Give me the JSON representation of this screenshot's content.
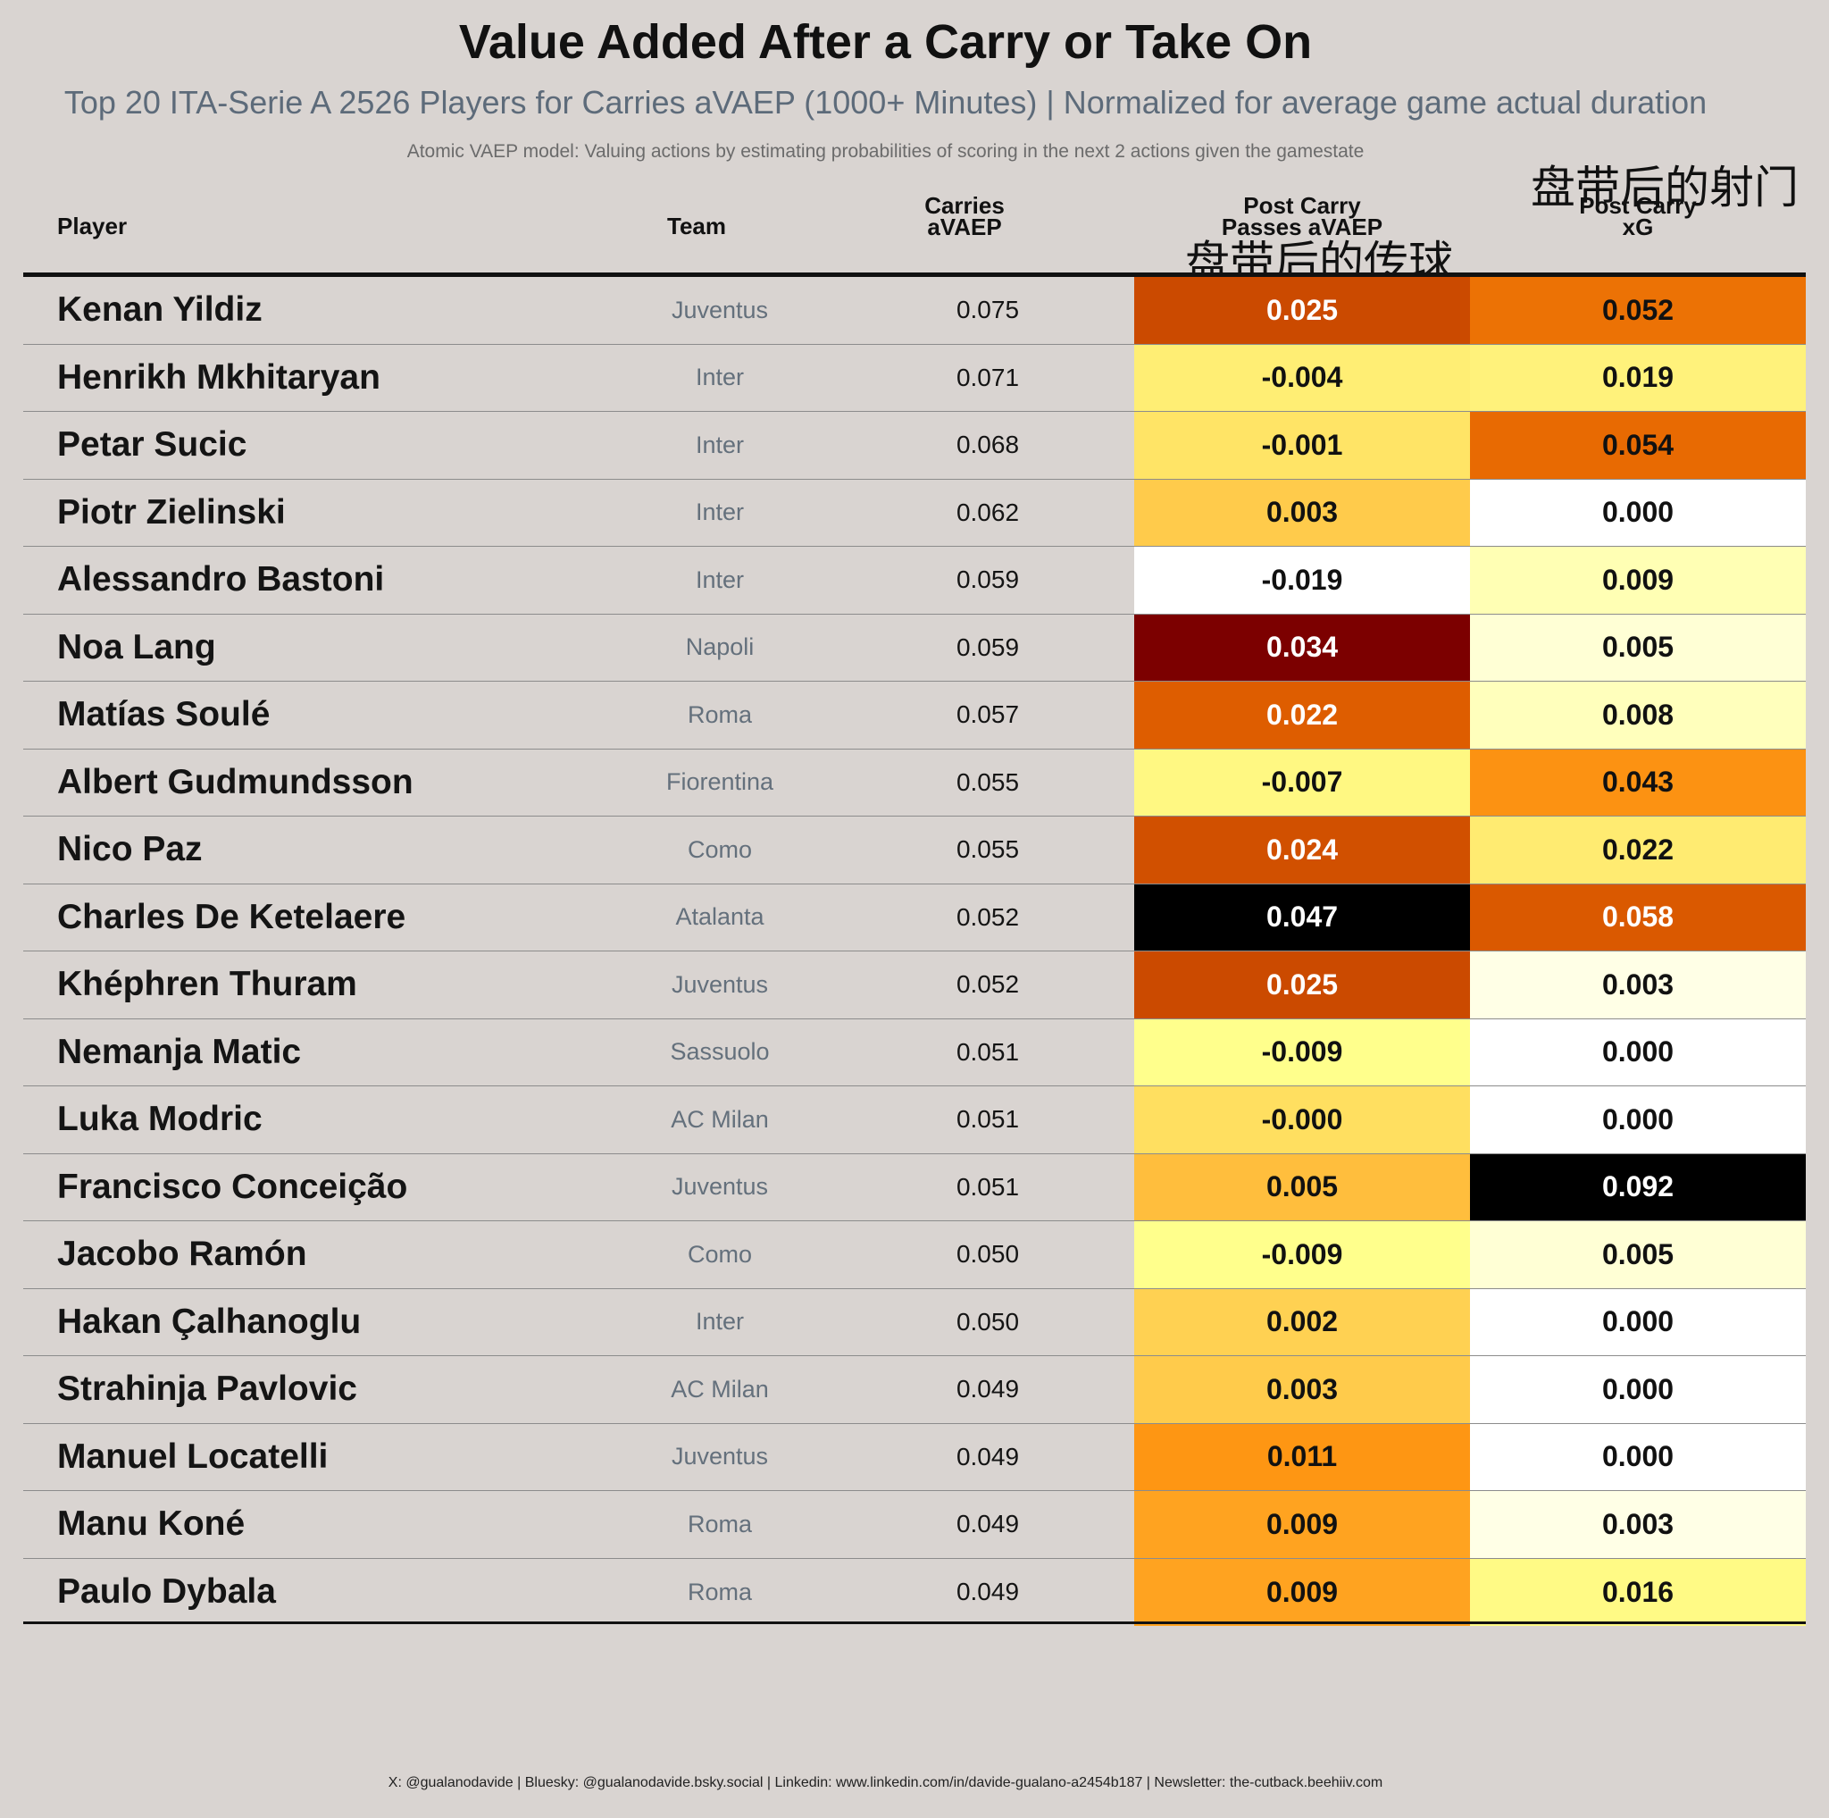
{
  "title": "Value Added After a Carry or Take On",
  "subtitle": "Top 20 ITA-Serie A 2526 Players for Carries aVAEP (1000+ Minutes) | Normalized for average game actual duration",
  "caption": "Atomic VAEP model: Valuing actions by estimating probabilities of scoring in the next 2 actions given the gamestate",
  "footer": "X: @gualanodavide | Bluesky: @gualanodavide.bsky.social | Linkedin: www.linkedin.com/in/davide-gualano-a2454b187 | Newsletter: the-cutback.beehiiv.com",
  "annotations": {
    "passes": "盘带后的传球",
    "xg": "盘带后的射门"
  },
  "headers": {
    "player": "Player",
    "team": "Team",
    "carries_l1": "Carries",
    "carries_l2": "aVAEP",
    "passes_l1": "Post Carry",
    "passes_l2": "Passes aVAEP",
    "xg_l1": "Post Carry",
    "xg_l2": "xG"
  },
  "chart_data": {
    "type": "table",
    "title": "Value Added After a Carry or Take On",
    "columns": [
      "Player",
      "Team",
      "Carries aVAEP",
      "Post Carry Passes aVAEP",
      "Post Carry xG"
    ],
    "color_scale": "afmhot_r (white → yellow → orange → dark red → black)",
    "rows": [
      {
        "player": "Kenan Yildiz",
        "team": "Juventus",
        "carries": "0.075",
        "passes": "0.025",
        "xg": "0.052"
      },
      {
        "player": "Henrikh Mkhitaryan",
        "team": "Inter",
        "carries": "0.071",
        "passes": "-0.004",
        "xg": "0.019"
      },
      {
        "player": "Petar Sucic",
        "team": "Inter",
        "carries": "0.068",
        "passes": "-0.001",
        "xg": "0.054"
      },
      {
        "player": "Piotr Zielinski",
        "team": "Inter",
        "carries": "0.062",
        "passes": "0.003",
        "xg": "0.000"
      },
      {
        "player": "Alessandro Bastoni",
        "team": "Inter",
        "carries": "0.059",
        "passes": "-0.019",
        "xg": "0.009"
      },
      {
        "player": "Noa Lang",
        "team": "Napoli",
        "carries": "0.059",
        "passes": "0.034",
        "xg": "0.005"
      },
      {
        "player": "Matías Soulé",
        "team": "Roma",
        "carries": "0.057",
        "passes": "0.022",
        "xg": "0.008"
      },
      {
        "player": "Albert Gudmundsson",
        "team": "Fiorentina",
        "carries": "0.055",
        "passes": "-0.007",
        "xg": "0.043"
      },
      {
        "player": "Nico Paz",
        "team": "Como",
        "carries": "0.055",
        "passes": "0.024",
        "xg": "0.022"
      },
      {
        "player": "Charles De Ketelaere",
        "team": "Atalanta",
        "carries": "0.052",
        "passes": "0.047",
        "xg": "0.058"
      },
      {
        "player": "Khéphren Thuram",
        "team": "Juventus",
        "carries": "0.052",
        "passes": "0.025",
        "xg": "0.003"
      },
      {
        "player": "Nemanja Matic",
        "team": "Sassuolo",
        "carries": "0.051",
        "passes": "-0.009",
        "xg": "0.000"
      },
      {
        "player": "Luka Modric",
        "team": "AC Milan",
        "carries": "0.051",
        "passes": "-0.000",
        "xg": "0.000"
      },
      {
        "player": "Francisco Conceição",
        "team": "Juventus",
        "carries": "0.051",
        "passes": "0.005",
        "xg": "0.092"
      },
      {
        "player": "Jacobo Ramón",
        "team": "Como",
        "carries": "0.050",
        "passes": "-0.009",
        "xg": "0.005"
      },
      {
        "player": "Hakan Çalhanoglu",
        "team": "Inter",
        "carries": "0.050",
        "passes": "0.002",
        "xg": "0.000"
      },
      {
        "player": "Strahinja Pavlovic",
        "team": "AC Milan",
        "carries": "0.049",
        "passes": "0.003",
        "xg": "0.000"
      },
      {
        "player": "Manuel Locatelli",
        "team": "Juventus",
        "carries": "0.049",
        "passes": "0.011",
        "xg": "0.000"
      },
      {
        "player": "Manu Koné",
        "team": "Roma",
        "carries": "0.049",
        "passes": "0.009",
        "xg": "0.003"
      },
      {
        "player": "Paulo Dybala",
        "team": "Roma",
        "carries": "0.049",
        "passes": "0.009",
        "xg": "0.016"
      }
    ]
  }
}
